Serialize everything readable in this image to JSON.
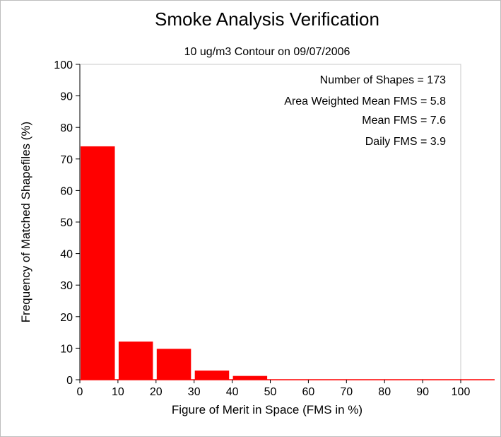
{
  "chart_data": {
    "type": "bar",
    "title": "Smoke Analysis Verification",
    "subtitle": "10 ug/m3 Contour on 09/07/2006",
    "xlabel": "Figure of Merit in Space (FMS in %)",
    "ylabel": "Frequency of Matched Shapefiles (%)",
    "xlim": [
      0,
      100
    ],
    "ylim": [
      0,
      100
    ],
    "xticks": [
      "0",
      "10",
      "20",
      "30",
      "40",
      "50",
      "60",
      "70",
      "80",
      "90",
      "100"
    ],
    "yticks": [
      "0",
      "10",
      "20",
      "30",
      "40",
      "50",
      "60",
      "70",
      "80",
      "90",
      "100"
    ],
    "bins": [
      {
        "from": 0,
        "to": 9,
        "value": 74.0
      },
      {
        "from": 10,
        "to": 19,
        "value": 12.1
      },
      {
        "from": 20,
        "to": 29,
        "value": 9.8
      },
      {
        "from": 30,
        "to": 39,
        "value": 2.9
      },
      {
        "from": 40,
        "to": 49,
        "value": 1.2
      },
      {
        "from": 50,
        "to": 59,
        "value": 0
      },
      {
        "from": 60,
        "to": 69,
        "value": 0
      },
      {
        "from": 70,
        "to": 79,
        "value": 0
      },
      {
        "from": 80,
        "to": 89,
        "value": 0
      },
      {
        "from": 90,
        "to": 99,
        "value": 0
      },
      {
        "from": 100,
        "to": 109,
        "value": 0
      }
    ],
    "bar_color": "#ff0000",
    "grid": false,
    "stats": {
      "shapes": "Number of Shapes = 173",
      "area_weighted": "Area Weighted Mean FMS = 5.8",
      "mean": "Mean FMS = 7.6",
      "daily": "Daily FMS = 3.9"
    }
  }
}
